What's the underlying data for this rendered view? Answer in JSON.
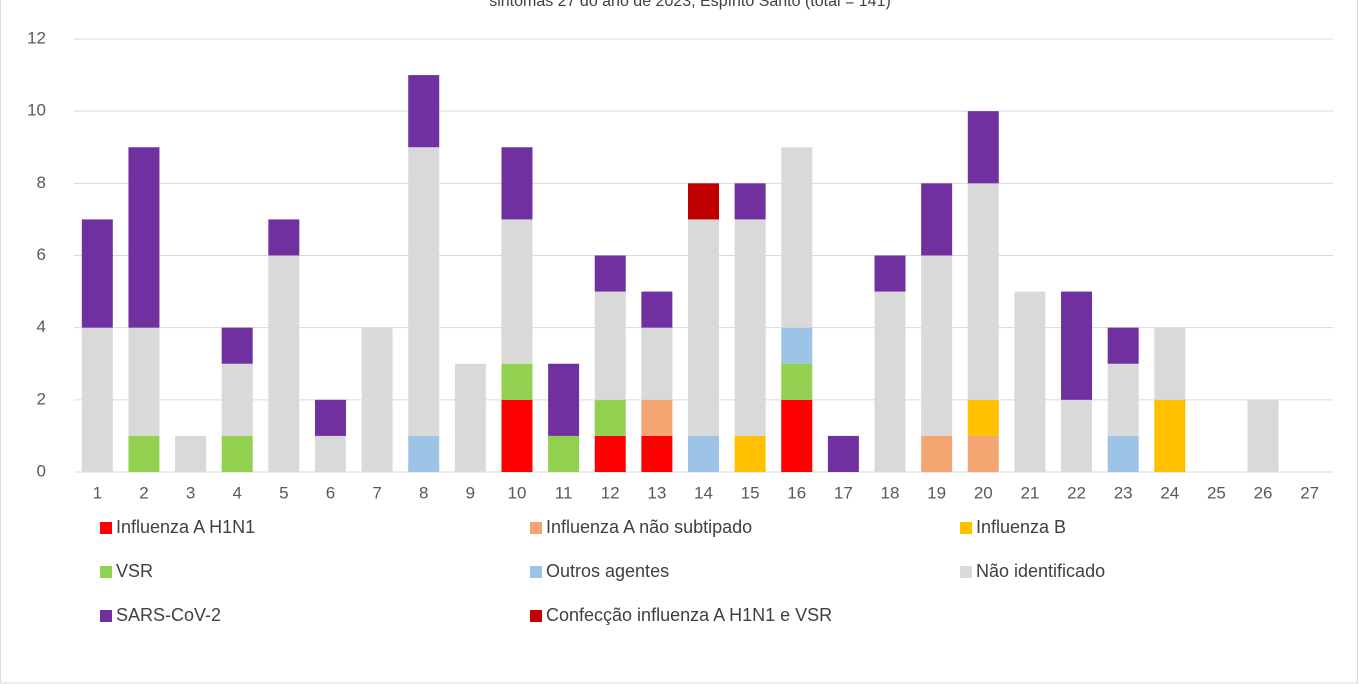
{
  "chart_data": {
    "type": "stacked_bar",
    "title": "sintomas 27 do ano de 2023, Espírito Santo (total = 141)",
    "categories": [
      "1",
      "2",
      "3",
      "4",
      "5",
      "6",
      "7",
      "8",
      "9",
      "10",
      "11",
      "12",
      "13",
      "14",
      "15",
      "16",
      "17",
      "18",
      "19",
      "20",
      "21",
      "22",
      "23",
      "24",
      "25",
      "26",
      "27"
    ],
    "series": [
      {
        "name": "Influenza A H1N1",
        "color": "#ff0000",
        "values": [
          0,
          0,
          0,
          0,
          0,
          0,
          0,
          0,
          0,
          2,
          0,
          1,
          1,
          0,
          0,
          2,
          0,
          0,
          0,
          0,
          0,
          0,
          0,
          0,
          0,
          0,
          0
        ]
      },
      {
        "name": "Influenza A não subtipado",
        "color": "#f4a672",
        "values": [
          0,
          0,
          0,
          0,
          0,
          0,
          0,
          0,
          0,
          0,
          0,
          0,
          1,
          0,
          0,
          0,
          0,
          0,
          1,
          1,
          0,
          0,
          0,
          0,
          0,
          0,
          0
        ]
      },
      {
        "name": "Influenza B",
        "color": "#ffc000",
        "values": [
          0,
          0,
          0,
          0,
          0,
          0,
          0,
          0,
          0,
          0,
          0,
          0,
          0,
          0,
          1,
          0,
          0,
          0,
          0,
          1,
          0,
          0,
          0,
          2,
          0,
          0,
          0
        ]
      },
      {
        "name": "VSR",
        "color": "#92d050",
        "values": [
          0,
          1,
          0,
          1,
          0,
          0,
          0,
          0,
          0,
          1,
          1,
          1,
          0,
          0,
          0,
          1,
          0,
          0,
          0,
          0,
          0,
          0,
          0,
          0,
          0,
          0,
          0
        ]
      },
      {
        "name": "Outros agentes",
        "color": "#9dc3e6",
        "values": [
          0,
          0,
          0,
          0,
          0,
          0,
          0,
          1,
          0,
          0,
          0,
          0,
          0,
          1,
          0,
          1,
          0,
          0,
          0,
          0,
          0,
          0,
          1,
          0,
          0,
          0,
          0
        ]
      },
      {
        "name": "Não identificado",
        "color": "#d9d9d9",
        "values": [
          4,
          3,
          1,
          2,
          6,
          1,
          4,
          8,
          3,
          4,
          0,
          3,
          2,
          6,
          6,
          5,
          0,
          5,
          5,
          6,
          5,
          2,
          2,
          2,
          0,
          2,
          0
        ]
      },
      {
        "name": "SARS-CoV-2",
        "color": "#7030a0",
        "values": [
          3,
          5,
          0,
          1,
          1,
          1,
          0,
          2,
          0,
          2,
          2,
          1,
          1,
          0,
          1,
          0,
          1,
          1,
          2,
          2,
          0,
          3,
          1,
          0,
          0,
          0,
          0
        ]
      },
      {
        "name": "Confecção influenza A H1N1 e VSR",
        "color": "#c00000",
        "values": [
          0,
          0,
          0,
          0,
          0,
          0,
          0,
          0,
          0,
          0,
          0,
          0,
          0,
          1,
          0,
          0,
          0,
          0,
          0,
          0,
          0,
          0,
          0,
          0,
          0,
          0,
          0
        ]
      }
    ],
    "ylim": [
      0,
      12
    ],
    "yticks": [
      0,
      2,
      4,
      6,
      8,
      10,
      12
    ],
    "grid": true,
    "legend": "bottom"
  }
}
